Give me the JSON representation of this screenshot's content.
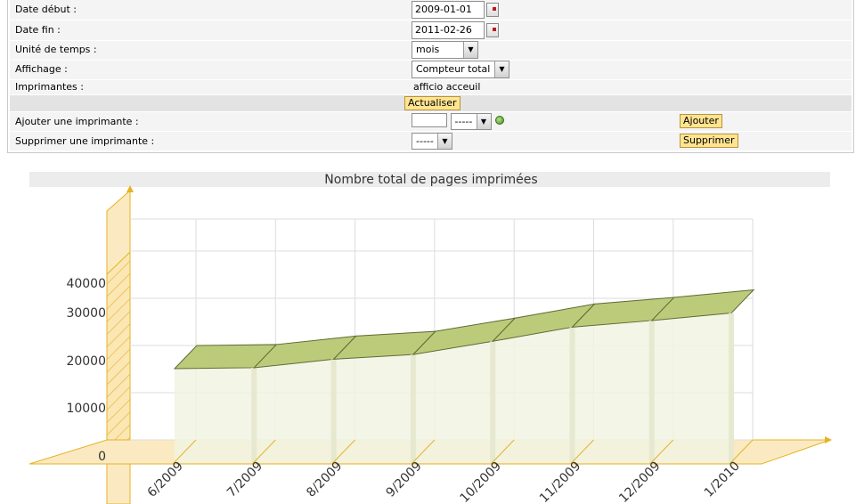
{
  "form": {
    "date_debut": {
      "label": "Date début :",
      "value": "2009-01-01"
    },
    "date_fin": {
      "label": "Date fin :",
      "value": "2011-02-26"
    },
    "unite": {
      "label": "Unité de temps :",
      "value": "mois"
    },
    "affichage": {
      "label": "Affichage :",
      "value": "Compteur total"
    },
    "imprimantes": {
      "label": "Imprimantes :",
      "value": "afficio acceuil"
    },
    "actualiser_label": "Actualiser",
    "ajouter": {
      "label": "Ajouter une imprimante :",
      "input_value": "",
      "select_value": "-----",
      "button_label": "Ajouter"
    },
    "supprimer": {
      "label": "Supprimer une imprimante :",
      "select_value": "-----",
      "button_label": "Supprimer"
    }
  },
  "chart_data": {
    "type": "area",
    "title": "Nombre total de pages imprimées",
    "categories": [
      "6/2009",
      "7/2009",
      "8/2009",
      "9/2009",
      "10/2009",
      "11/2009",
      "12/2009",
      "1/2010"
    ],
    "values": [
      20000,
      20200,
      22000,
      23000,
      25800,
      28800,
      30200,
      31800
    ],
    "yticks": [
      0,
      10000,
      20000,
      30000,
      40000
    ],
    "ylim": [
      0,
      45000
    ],
    "colors": {
      "fill": "#f1f3e2",
      "top": "#bccb7a",
      "axis": "#e5b323",
      "grid": "#dddddd"
    }
  }
}
